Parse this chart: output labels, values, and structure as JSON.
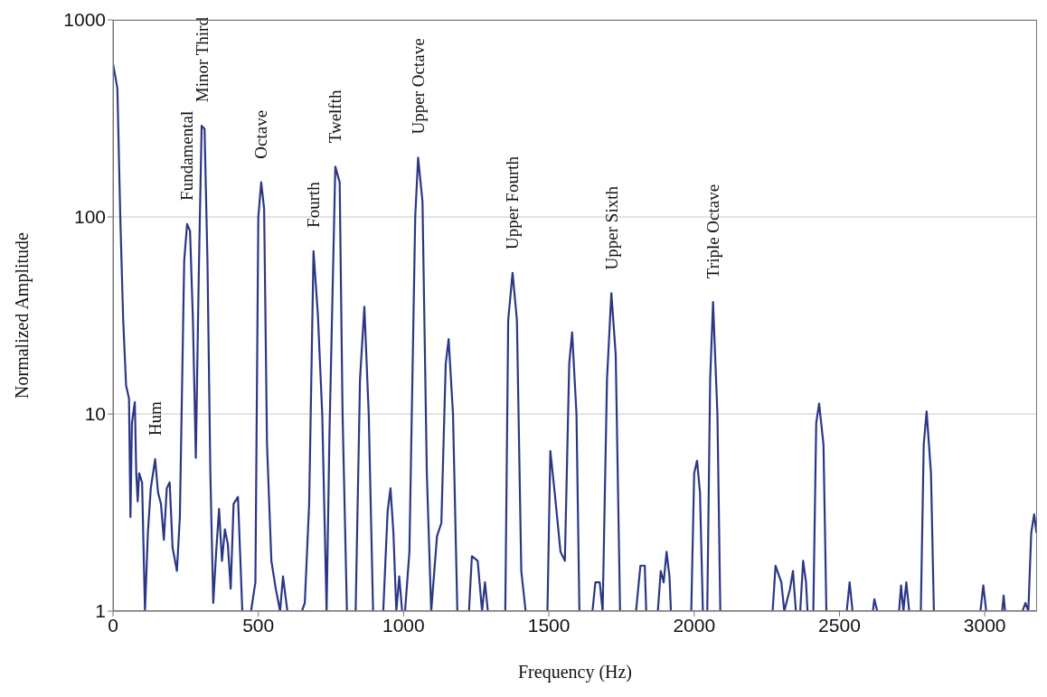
{
  "chart_data": {
    "type": "line",
    "xlabel": "Frequency (Hz)",
    "ylabel": "Normalized Amplitude",
    "log": "y",
    "grid": "y",
    "marker": "none",
    "line_style": "solid",
    "xlim": [
      0,
      3180
    ],
    "xticks": [
      0,
      500,
      1000,
      1500,
      2000,
      2500,
      3000
    ],
    "ylim": [
      1,
      1000
    ],
    "yticks": [
      1,
      10,
      100,
      1000
    ],
    "annotations": [
      {
        "text": "Hum",
        "x": 145,
        "y": 5.9
      },
      {
        "text": "Fundamental",
        "x": 255,
        "y": 92
      },
      {
        "text": "Minor Third",
        "x": 305,
        "y": 290
      },
      {
        "text": "Octave",
        "x": 510,
        "y": 150
      },
      {
        "text": "Fourth",
        "x": 690,
        "y": 67
      },
      {
        "text": "Twelfth",
        "x": 765,
        "y": 180
      },
      {
        "text": "Upper Octave",
        "x": 1050,
        "y": 200
      },
      {
        "text": "Upper Fourth",
        "x": 1375,
        "y": 52
      },
      {
        "text": "Upper Sixth",
        "x": 1715,
        "y": 41
      },
      {
        "text": "Triple Octave",
        "x": 2065,
        "y": 37
      }
    ],
    "series": [
      {
        "color": "#2b3784",
        "x": [
          0,
          15,
          25,
          35,
          45,
          55,
          60,
          65,
          75,
          80,
          85,
          90,
          100,
          110,
          120,
          130,
          145,
          155,
          165,
          175,
          185,
          195,
          205,
          220,
          230,
          245,
          255,
          265,
          275,
          285,
          295,
          305,
          315,
          325,
          335,
          345,
          355,
          365,
          375,
          385,
          395,
          405,
          415,
          430,
          445,
          460,
          475,
          490,
          500,
          510,
          520,
          530,
          545,
          560,
          575,
          585,
          600,
          650,
          660,
          675,
          690,
          705,
          720,
          735,
          745,
          765,
          780,
          790,
          805,
          835,
          850,
          865,
          880,
          895,
          930,
          945,
          955,
          965,
          975,
          985,
          995,
          1005,
          1020,
          1040,
          1050,
          1065,
          1080,
          1095,
          1115,
          1130,
          1145,
          1155,
          1170,
          1185,
          1225,
          1235,
          1255,
          1270,
          1280,
          1290,
          1350,
          1360,
          1375,
          1390,
          1405,
          1420,
          1495,
          1505,
          1520,
          1540,
          1555,
          1570,
          1580,
          1595,
          1605,
          1650,
          1660,
          1675,
          1685,
          1700,
          1715,
          1730,
          1745,
          1800,
          1815,
          1830,
          1835,
          1875,
          1885,
          1895,
          1905,
          1915,
          1920,
          1990,
          2000,
          2010,
          2020,
          2030,
          2045,
          2055,
          2065,
          2080,
          2090,
          2270,
          2280,
          2300,
          2310,
          2330,
          2340,
          2350,
          2365,
          2375,
          2385,
          2390,
          2410,
          2420,
          2430,
          2445,
          2455,
          2525,
          2535,
          2545,
          2615,
          2620,
          2630,
          2705,
          2712,
          2720,
          2730,
          2740,
          2780,
          2790,
          2800,
          2815,
          2825,
          2985,
          2995,
          3005,
          3060,
          3065,
          3070,
          3130,
          3140,
          3150,
          3160,
          3170,
          3178
        ],
        "values": [
          600,
          450,
          100,
          30,
          14,
          12,
          3,
          9,
          11.5,
          5,
          3.6,
          5,
          4.5,
          1,
          2.5,
          4.2,
          5.9,
          4,
          3.5,
          2.3,
          4.2,
          4.5,
          2.1,
          1.6,
          3,
          60,
          92,
          85,
          30,
          6,
          50,
          290,
          280,
          60,
          5,
          1.1,
          2,
          3.3,
          1.8,
          2.6,
          2.2,
          1.3,
          3.5,
          3.8,
          1,
          1,
          1,
          1.4,
          100,
          150,
          110,
          7,
          1.8,
          1.3,
          1,
          1.5,
          1,
          1,
          1.1,
          3.5,
          67,
          32,
          10,
          1,
          8,
          180,
          150,
          10,
          1,
          1,
          15,
          35,
          10,
          1,
          1,
          3.2,
          4.2,
          2.5,
          1,
          1.5,
          1,
          1,
          2,
          100,
          200,
          120,
          5,
          1,
          2.4,
          2.8,
          18,
          24,
          10,
          1,
          1,
          1.9,
          1.8,
          1,
          1.4,
          1,
          1,
          30,
          52,
          30,
          1.6,
          1,
          1,
          6.5,
          4,
          2,
          1.8,
          18,
          26,
          10,
          1,
          1,
          1.4,
          1.4,
          1,
          15,
          41,
          20,
          1,
          1,
          1.7,
          1.7,
          1,
          1,
          1.6,
          1.4,
          2,
          1.5,
          1,
          1,
          5,
          5.8,
          4,
          1,
          1,
          15,
          37,
          10,
          1,
          1,
          1.7,
          1.4,
          1,
          1.3,
          1.6,
          1,
          1,
          1.8,
          1.4,
          1,
          1,
          9,
          11.3,
          7,
          1,
          1,
          1.4,
          1,
          1,
          1.15,
          1,
          1,
          1.35,
          1,
          1.4,
          1,
          1,
          7,
          10.3,
          5,
          1,
          1,
          1.35,
          1,
          1,
          1.2,
          1,
          1,
          1.1,
          1,
          2.5,
          3.1,
          2.5
        ]
      }
    ]
  }
}
